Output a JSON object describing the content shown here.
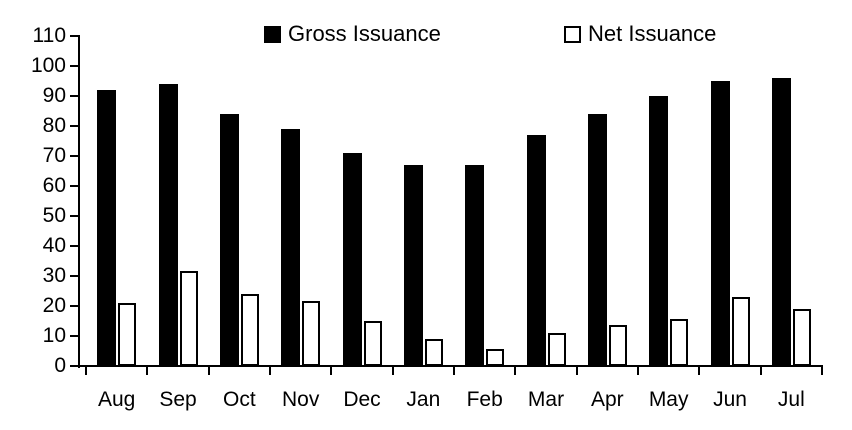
{
  "chart_data": {
    "type": "bar",
    "categories": [
      "Aug",
      "Sep",
      "Oct",
      "Nov",
      "Dec",
      "Jan",
      "Feb",
      "Mar",
      "Apr",
      "May",
      "Jun",
      "Jul"
    ],
    "series": [
      {
        "name": "Gross Issuance",
        "values": [
          92,
          94,
          84,
          79,
          71,
          67,
          67,
          77,
          84,
          90,
          95,
          96
        ],
        "fill": "#000000"
      },
      {
        "name": "Net Issuance",
        "values": [
          21,
          31.5,
          24,
          21.5,
          15,
          9,
          5.5,
          11,
          13.5,
          15.5,
          23,
          19
        ],
        "fill": "#ffffff",
        "border": "#000000"
      }
    ],
    "title": "",
    "xlabel": "",
    "ylabel": "",
    "ylim": [
      0,
      110
    ],
    "ytick_step": 10,
    "grid": false,
    "legend_position": "top"
  },
  "colors": {
    "bar_gross": "#000000",
    "bar_net_fill": "#ffffff",
    "bar_net_border": "#000000",
    "axis": "#000000",
    "text": "#000000",
    "background": "#ffffff"
  }
}
